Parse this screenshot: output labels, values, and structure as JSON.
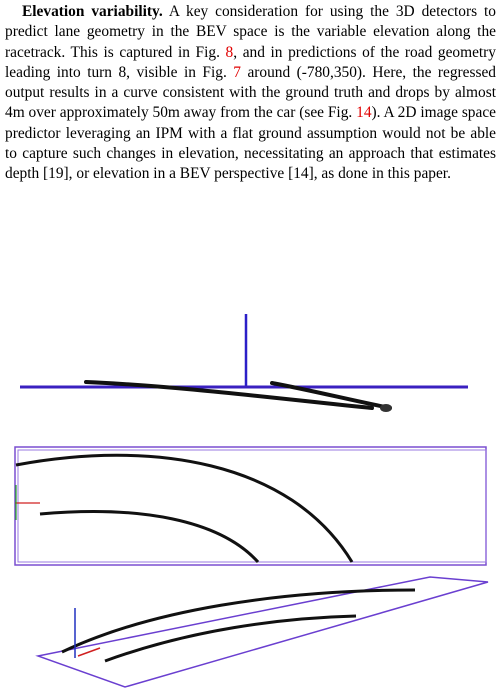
{
  "paragraph": {
    "heading": "Elevation variability.",
    "body": [
      "A key consideration for using the 3D detectors to predict lane geometry in the BEV space is the variable elevation along the racetrack. This is captured in Fig. ",
      "8",
      ", and in predictions of the road geometry leading into turn 8, visible in Fig. ",
      "7",
      " around (-780,350). Here, the regressed output results in a curve consistent with the ground truth and drops by almost 4m over approximately 50m away from the car (see Fig. ",
      "14",
      "). A 2D image space predictor leveraging an IPM with a flat ground assumption would not be able to capture such changes in elevation, necessitating an approach that estimates depth [19], or elevation in a BEV perspective [14], as done in this paper."
    ]
  }
}
